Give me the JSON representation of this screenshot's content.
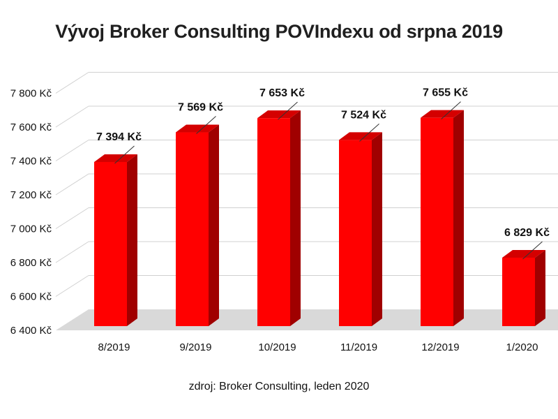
{
  "chart_data": {
    "type": "bar",
    "title": "Vývoj Broker Consulting POVIndexu od srpna 2019",
    "source_note": "zdroj: Broker Consulting, leden 2020",
    "categories": [
      "8/2019",
      "9/2019",
      "10/2019",
      "11/2019",
      "12/2019",
      "1/2020"
    ],
    "values": [
      7394,
      7569,
      7653,
      7524,
      7655,
      6829
    ],
    "data_labels": [
      "7 394 Kč",
      "7 569 Kč",
      "7 653 Kč",
      "7 524 Kč",
      "7 655 Kč",
      "6 829 Kč"
    ],
    "yticks": [
      6400,
      6600,
      6800,
      7000,
      7200,
      7400,
      7600,
      7800
    ],
    "ytick_labels": [
      "6 400 Kč",
      "6 600 Kč",
      "6 800 Kč",
      "7 000 Kč",
      "7 200 Kč",
      "7 400 Kč",
      "7 600 Kč",
      "7 800 Kč"
    ],
    "ylim": [
      6400,
      7800
    ],
    "grid": true,
    "style": "3d-column",
    "bar_color": "#ff0000",
    "xlabel": "",
    "ylabel": ""
  }
}
